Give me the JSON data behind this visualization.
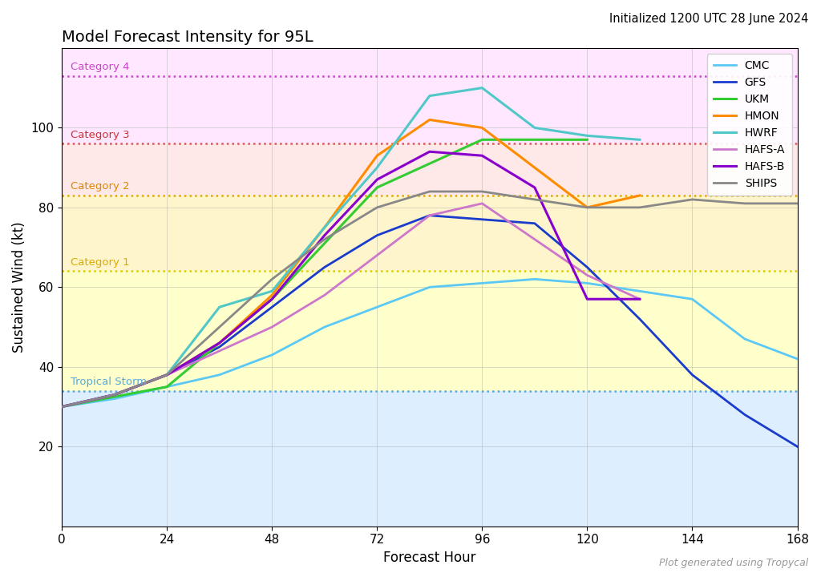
{
  "title": "Model Forecast Intensity for 95L",
  "subtitle": "Initialized 1200 UTC 28 June 2024",
  "xlabel": "Forecast Hour",
  "ylabel": "Sustained Wind (kt)",
  "footnote": "Plot generated using Tropycal",
  "xlim": [
    0,
    168
  ],
  "ylim": [
    0,
    120
  ],
  "xticks": [
    0,
    24,
    48,
    72,
    96,
    120,
    144,
    168
  ],
  "yticks": [
    20,
    40,
    60,
    80,
    100
  ],
  "thresholds": {
    "Tropical Storm": {
      "wind": 34,
      "line_color": "#55aadd",
      "label_color": "#55aadd"
    },
    "Category 1": {
      "wind": 64,
      "line_color": "#ddcc00",
      "label_color": "#ddaa00"
    },
    "Category 2": {
      "wind": 83,
      "line_color": "#ddaa00",
      "label_color": "#dd8800"
    },
    "Category 3": {
      "wind": 96,
      "line_color": "#dd5555",
      "label_color": "#cc3333"
    },
    "Category 4": {
      "wind": 113,
      "line_color": "#cc44cc",
      "label_color": "#cc44cc"
    }
  },
  "bg_bands": [
    {
      "ymin": 0,
      "ymax": 34,
      "color": "#ddeeff"
    },
    {
      "ymin": 34,
      "ymax": 64,
      "color": "#ffffcc"
    },
    {
      "ymin": 64,
      "ymax": 83,
      "color": "#fff5cc"
    },
    {
      "ymin": 83,
      "ymax": 96,
      "color": "#ffe8e8"
    },
    {
      "ymin": 96,
      "ymax": 130,
      "color": "#ffe8ff"
    }
  ],
  "models": {
    "CMC": {
      "color": "#5bc8f5",
      "linewidth": 2.0,
      "hours": [
        0,
        12,
        24,
        36,
        48,
        60,
        72,
        84,
        96,
        108,
        120,
        132,
        144,
        156,
        168
      ],
      "winds": [
        30,
        32,
        35,
        38,
        43,
        50,
        55,
        60,
        61,
        62,
        61,
        59,
        57,
        47,
        42
      ]
    },
    "GFS": {
      "color": "#1a3ccc",
      "linewidth": 2.0,
      "hours": [
        0,
        12,
        24,
        36,
        48,
        60,
        72,
        84,
        96,
        108,
        120,
        132,
        144,
        156,
        168
      ],
      "winds": [
        30,
        33,
        38,
        45,
        55,
        65,
        73,
        78,
        77,
        76,
        65,
        52,
        38,
        28,
        20
      ]
    },
    "UKM": {
      "color": "#33cc33",
      "linewidth": 2.2,
      "hours": [
        0,
        24,
        48,
        72,
        96,
        120
      ],
      "winds": [
        30,
        35,
        57,
        85,
        97,
        97
      ]
    },
    "HMON": {
      "color": "#ff8c00",
      "linewidth": 2.2,
      "hours": [
        0,
        12,
        24,
        36,
        48,
        60,
        72,
        84,
        96,
        108,
        120,
        132
      ],
      "winds": [
        30,
        33,
        38,
        46,
        58,
        75,
        93,
        102,
        100,
        90,
        80,
        83
      ]
    },
    "HWRF": {
      "color": "#50c8c8",
      "linewidth": 2.2,
      "hours": [
        0,
        12,
        24,
        36,
        48,
        60,
        72,
        84,
        96,
        108,
        120,
        132
      ],
      "winds": [
        30,
        33,
        38,
        55,
        59,
        75,
        90,
        108,
        110,
        100,
        98,
        97
      ]
    },
    "HAFS-A": {
      "color": "#cc77cc",
      "linewidth": 2.0,
      "hours": [
        0,
        12,
        24,
        36,
        48,
        60,
        72,
        84,
        96,
        108,
        120,
        132
      ],
      "winds": [
        30,
        33,
        38,
        44,
        50,
        58,
        68,
        78,
        81,
        72,
        63,
        57
      ]
    },
    "HAFS-B": {
      "color": "#8800cc",
      "linewidth": 2.2,
      "hours": [
        0,
        12,
        24,
        36,
        48,
        60,
        72,
        84,
        96,
        108,
        120,
        132
      ],
      "winds": [
        30,
        33,
        38,
        46,
        57,
        73,
        87,
        94,
        93,
        85,
        57,
        57
      ]
    },
    "SHIPS": {
      "color": "#888888",
      "linewidth": 2.0,
      "hours": [
        0,
        12,
        24,
        36,
        48,
        60,
        72,
        84,
        96,
        108,
        120,
        132,
        144,
        156,
        168
      ],
      "winds": [
        30,
        33,
        38,
        50,
        62,
        72,
        80,
        84,
        84,
        82,
        80,
        80,
        82,
        81,
        81
      ]
    }
  },
  "model_order": [
    "CMC",
    "GFS",
    "UKM",
    "HMON",
    "HWRF",
    "HAFS-A",
    "HAFS-B",
    "SHIPS"
  ]
}
